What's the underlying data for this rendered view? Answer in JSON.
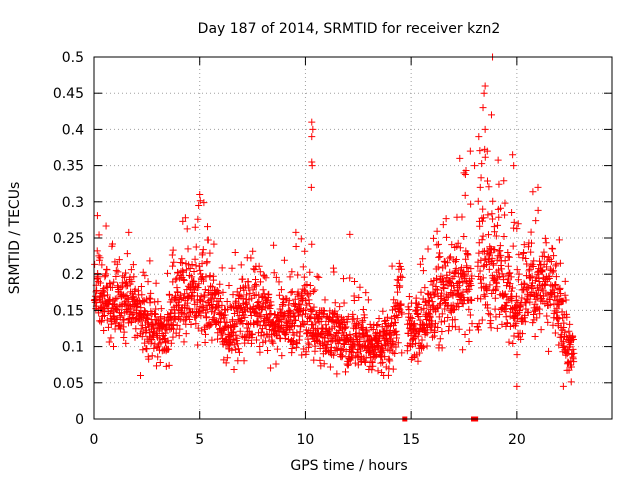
{
  "chart_data": {
    "type": "scatter",
    "title": "Day 187 of 2014, SRMTID for receiver kzn2",
    "xlabel": "GPS time / hours",
    "ylabel": "SRMTID / TECUs",
    "xlim": [
      0,
      24.5
    ],
    "ylim": [
      0,
      0.5
    ],
    "x_ticks": [
      0,
      5,
      10,
      15,
      20
    ],
    "x_tick_labels": [
      "0",
      "5",
      "10",
      "15",
      "20"
    ],
    "y_ticks": [
      0,
      0.05,
      0.1,
      0.15,
      0.2,
      0.25,
      0.3,
      0.35,
      0.4,
      0.45,
      0.5
    ],
    "y_tick_labels": [
      "0",
      "0.05",
      "0.1",
      "0.15",
      "0.2",
      "0.25",
      "0.3",
      "0.35",
      "0.4",
      "0.45",
      "0.5"
    ],
    "grid": true,
    "marker": "plus",
    "colors": {
      "series": "#ff0000",
      "grid": "#a0a0a0",
      "axis": "#000000"
    },
    "envelope": {
      "hours": [
        0,
        0.5,
        1,
        1.5,
        2,
        2.5,
        3,
        3.5,
        4,
        4.5,
        5,
        5.5,
        6,
        6.5,
        7,
        7.5,
        8,
        8.5,
        9,
        9.5,
        10,
        10.5,
        11,
        11.5,
        12,
        12.5,
        13,
        13.5,
        14,
        14.5,
        15,
        15.5,
        16,
        16.5,
        17,
        17.5,
        18,
        18.5,
        19,
        19.5,
        20,
        20.5,
        21,
        21.5,
        22,
        22.5
      ],
      "mean": [
        0.18,
        0.17,
        0.16,
        0.16,
        0.15,
        0.13,
        0.12,
        0.12,
        0.17,
        0.17,
        0.18,
        0.17,
        0.13,
        0.12,
        0.15,
        0.15,
        0.15,
        0.13,
        0.13,
        0.14,
        0.15,
        0.12,
        0.12,
        0.12,
        0.11,
        0.11,
        0.1,
        0.1,
        0.11,
        0.16,
        0.12,
        0.13,
        0.16,
        0.17,
        0.18,
        0.19,
        0.2,
        0.22,
        0.21,
        0.18,
        0.15,
        0.17,
        0.19,
        0.18,
        0.15,
        0.09
      ],
      "spread": [
        0.05,
        0.05,
        0.05,
        0.05,
        0.04,
        0.04,
        0.04,
        0.04,
        0.05,
        0.05,
        0.06,
        0.05,
        0.04,
        0.04,
        0.05,
        0.05,
        0.05,
        0.05,
        0.04,
        0.05,
        0.06,
        0.04,
        0.04,
        0.04,
        0.04,
        0.04,
        0.03,
        0.03,
        0.04,
        0.05,
        0.04,
        0.04,
        0.05,
        0.06,
        0.06,
        0.07,
        0.07,
        0.08,
        0.07,
        0.06,
        0.05,
        0.06,
        0.06,
        0.06,
        0.05,
        0.03
      ],
      "gap_hours": [
        14.7,
        18.0
      ]
    },
    "spikes": [
      {
        "x": 10.3,
        "y": 0.41
      },
      {
        "x": 10.35,
        "y": 0.4
      },
      {
        "x": 10.3,
        "y": 0.39
      },
      {
        "x": 10.3,
        "y": 0.355
      },
      {
        "x": 10.32,
        "y": 0.35
      },
      {
        "x": 10.28,
        "y": 0.32
      },
      {
        "x": 18.85,
        "y": 0.5
      },
      {
        "x": 18.5,
        "y": 0.46
      },
      {
        "x": 18.45,
        "y": 0.45
      },
      {
        "x": 18.4,
        "y": 0.43
      },
      {
        "x": 18.8,
        "y": 0.42
      },
      {
        "x": 18.5,
        "y": 0.4
      },
      {
        "x": 18.2,
        "y": 0.39
      },
      {
        "x": 18.6,
        "y": 0.37
      },
      {
        "x": 17.8,
        "y": 0.37
      },
      {
        "x": 18.0,
        "y": 0.35
      },
      {
        "x": 19.8,
        "y": 0.365
      },
      {
        "x": 19.85,
        "y": 0.35
      },
      {
        "x": 17.3,
        "y": 0.36
      },
      {
        "x": 17.5,
        "y": 0.34
      },
      {
        "x": 21.0,
        "y": 0.32
      },
      {
        "x": 5.0,
        "y": 0.31
      },
      {
        "x": 12.1,
        "y": 0.255
      },
      {
        "x": 20.0,
        "y": 0.045
      },
      {
        "x": 22.2,
        "y": 0.045
      },
      {
        "x": 2.2,
        "y": 0.06
      },
      {
        "x": 13.7,
        "y": 0.06
      }
    ],
    "gap_markers": [
      {
        "x": 14.7,
        "y": 0
      },
      {
        "x": 17.95,
        "y": 0
      },
      {
        "x": 18.05,
        "y": 0
      }
    ]
  }
}
